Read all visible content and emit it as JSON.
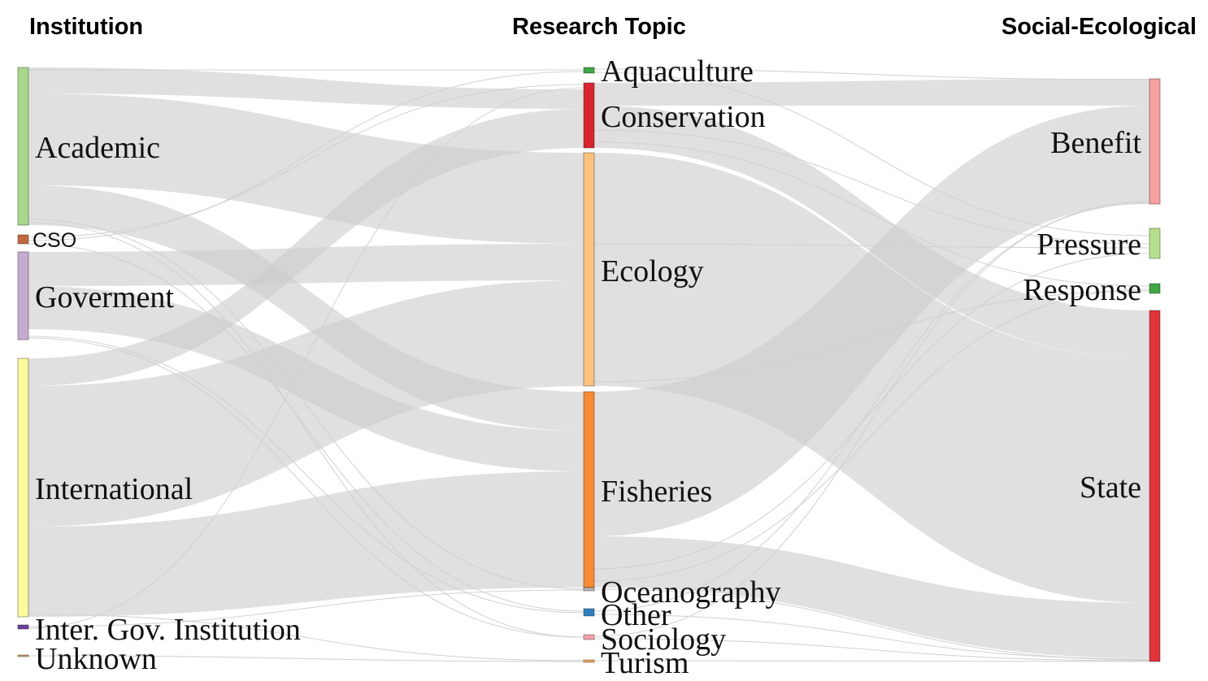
{
  "columns": {
    "institution": "Institution",
    "topic": "Research Topic",
    "social": "Social-Ecological"
  },
  "nodes": {
    "academic": {
      "label": "Academic",
      "color": "#a8d98a"
    },
    "cso": {
      "label": "CSO",
      "color": "#c06a3c"
    },
    "goverment": {
      "label": "Goverment",
      "color": "#c7acd2"
    },
    "international": {
      "label": "International",
      "color": "#fbfb9d"
    },
    "intergov": {
      "label": "Inter. Gov. Institution",
      "color": "#6b3fa0"
    },
    "unknown": {
      "label": "Unknown",
      "color": "#c9a06a"
    },
    "aquaculture": {
      "label": "Aquaculture",
      "color": "#3ea845"
    },
    "conservation": {
      "label": "Conservation",
      "color": "#d9242e"
    },
    "ecology": {
      "label": "Ecology",
      "color": "#fdc27e"
    },
    "fisheries": {
      "label": "Fisheries",
      "color": "#f98a33"
    },
    "oceanography": {
      "label": "Oceanography",
      "color": "#b3b3b3"
    },
    "other": {
      "label": "Other",
      "color": "#2f7fbf"
    },
    "sociology": {
      "label": "Sociology",
      "color": "#f4a3ad"
    },
    "turism": {
      "label": "Turism",
      "color": "#f0a860"
    },
    "benefit": {
      "label": "Benefit",
      "color": "#f8a1a1"
    },
    "pressure": {
      "label": "Pressure",
      "color": "#b5e08c"
    },
    "response": {
      "label": "Response",
      "color": "#3ea845"
    },
    "state": {
      "label": "State",
      "color": "#e3343a"
    }
  }
}
